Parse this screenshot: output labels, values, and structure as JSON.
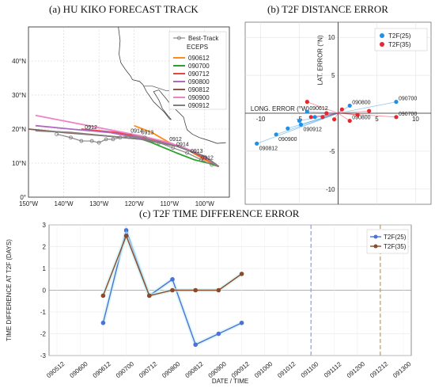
{
  "panels": {
    "a_title": "(a) HU KIKO FORECAST TRACK",
    "b_title": "(b) T2F DISTANCE ERROR",
    "c_title": "(c) T2F TIME DIFFERENCE ERROR"
  },
  "chart_data": [
    {
      "type": "line",
      "panel": "a",
      "title": "(a) HU KIKO FORECAST TRACK",
      "x_ticks": [
        "150°W",
        "140°W",
        "130°W",
        "120°W",
        "110°W",
        "100°W"
      ],
      "y_ticks": [
        "0°",
        "10°N",
        "20°N",
        "30°N",
        "40°N"
      ],
      "xlim": [
        -150,
        -93
      ],
      "ylim": [
        0,
        50
      ],
      "legend_title": "ECEPS",
      "best_track_label": "Best-Track",
      "series": [
        {
          "name": "090612",
          "color": "#ff8c1a",
          "lon": [
            -120,
            -115,
            -110,
            -105,
            -100,
            -96
          ],
          "lat": [
            21,
            19,
            16,
            14,
            11,
            9
          ]
        },
        {
          "name": "090700",
          "color": "#2ca02c",
          "lon": [
            -122,
            -115,
            -108,
            -103,
            -99,
            -96
          ],
          "lat": [
            18.5,
            16,
            13,
            11,
            10,
            9
          ]
        },
        {
          "name": "090712",
          "color": "#e8433f",
          "lon": [
            -135,
            -125,
            -115,
            -107,
            -101,
            -96
          ],
          "lat": [
            20,
            19,
            17,
            15,
            12,
            9
          ]
        },
        {
          "name": "090800",
          "color": "#b068c0",
          "lon": [
            -148,
            -138,
            -127,
            -117,
            -107,
            -100,
            -96
          ],
          "lat": [
            21,
            20,
            19,
            17,
            15,
            12,
            9
          ]
        },
        {
          "name": "090812",
          "color": "#8c564b",
          "lon": [
            -150,
            -140,
            -128,
            -118,
            -108,
            -100,
            -96
          ],
          "lat": [
            20,
            19,
            18,
            17,
            15,
            12,
            9
          ]
        },
        {
          "name": "090900",
          "color": "#ee82c8",
          "lon": [
            -148,
            -138,
            -128,
            -118,
            -110,
            -102,
            -96
          ],
          "lat": [
            24,
            22,
            20,
            18,
            16,
            13,
            9
          ]
        },
        {
          "name": "090912",
          "color": "#7f7f7f",
          "lon": [
            -148,
            -138,
            -128,
            -118,
            -108,
            -100,
            -96
          ],
          "lat": [
            19.5,
            19,
            18,
            17,
            15,
            12,
            9
          ]
        }
      ],
      "best_track": {
        "lon": [
          -142,
          -138,
          -135,
          -132,
          -130,
          -128,
          -126,
          -124,
          -121,
          -117,
          -113,
          -109,
          -105,
          -101,
          -98
        ],
        "lat": [
          18.5,
          17.5,
          16.5,
          16.5,
          16,
          17,
          17,
          17.5,
          18,
          17.5,
          16,
          14.5,
          13,
          11,
          9.5
        ]
      },
      "annotations": [
        "0912",
        "0914",
        "0913",
        "0912",
        "0914",
        "0913",
        "0912"
      ]
    },
    {
      "type": "scatter",
      "panel": "b",
      "title": "(b) T2F DISTANCE ERROR",
      "xlabel": "LONG. ERROR (°W)",
      "ylabel": "LAT. ERROR (°N)",
      "xlim": [
        -12,
        12
      ],
      "ylim": [
        -12,
        12
      ],
      "x_ticks": [
        "-10",
        "-5",
        "5",
        "10"
      ],
      "y_ticks": [
        "10",
        "5",
        "-5",
        "-10"
      ],
      "series": [
        {
          "name": "T2F(25)",
          "color": "#1e90e6",
          "points": [
            [
              -10.5,
              -4
            ],
            [
              -8,
              -2.8
            ],
            [
              -6.5,
              -2
            ],
            [
              -4.8,
              -1.5
            ],
            [
              -4,
              0.2
            ],
            [
              1.5,
              1
            ],
            [
              7.5,
              1.5
            ],
            [
              -5,
              -1
            ],
            [
              -3,
              -0.5
            ]
          ],
          "labels": [
            "090812",
            "090900",
            "",
            "090912",
            "090612",
            "090800",
            "090700",
            "",
            ""
          ]
        },
        {
          "name": "T2F(35)",
          "color": "#e8262f",
          "points": [
            [
              -4,
              1.5
            ],
            [
              -3.5,
              -0.5
            ],
            [
              -2,
              -0.5
            ],
            [
              -1.5,
              0
            ],
            [
              0.5,
              0.5
            ],
            [
              1.5,
              -1
            ],
            [
              4,
              0.3
            ],
            [
              7.5,
              -0.5
            ],
            [
              -0.5,
              -0.8
            ],
            [
              2.5,
              -0.2
            ]
          ],
          "labels": [
            "",
            "",
            "",
            "",
            "",
            "090800",
            "",
            "090700",
            "",
            ""
          ]
        }
      ]
    },
    {
      "type": "line",
      "panel": "c",
      "title": "(c) T2F TIME DIFFERENCE ERROR",
      "xlabel": "DATE / TIME",
      "ylabel": "TIME DIFFERENCE AT T2F (DAYS)",
      "categories": [
        "090512",
        "090600",
        "090612",
        "090700",
        "090712",
        "090800",
        "090812",
        "090900",
        "090912",
        "091000",
        "091012",
        "091100",
        "091112",
        "091200",
        "091212",
        "091300"
      ],
      "ylim": [
        -3,
        3
      ],
      "y_ticks": [
        "3",
        "2",
        "1",
        "0",
        "-1",
        "-2",
        "-3"
      ],
      "series": [
        {
          "name": "T2F(25)",
          "color": "#4a72d8",
          "x": [
            "090612",
            "090700",
            "090712",
            "090800",
            "090812",
            "090900",
            "090912"
          ],
          "values": [
            -1.5,
            2.75,
            -0.25,
            0.5,
            -2.5,
            -2.0,
            -1.5
          ]
        },
        {
          "name": "T2F(35)",
          "color": "#8b4a2b",
          "x": [
            "090612",
            "090700",
            "090712",
            "090800",
            "090812",
            "090900",
            "090912"
          ],
          "values": [
            -0.25,
            2.5,
            -0.25,
            0.0,
            0.0,
            0.0,
            0.75
          ]
        }
      ],
      "vlines": [
        {
          "x": "091100",
          "color": "#8f9be0"
        },
        {
          "x": "091212",
          "color": "#b09a7c"
        }
      ]
    }
  ]
}
